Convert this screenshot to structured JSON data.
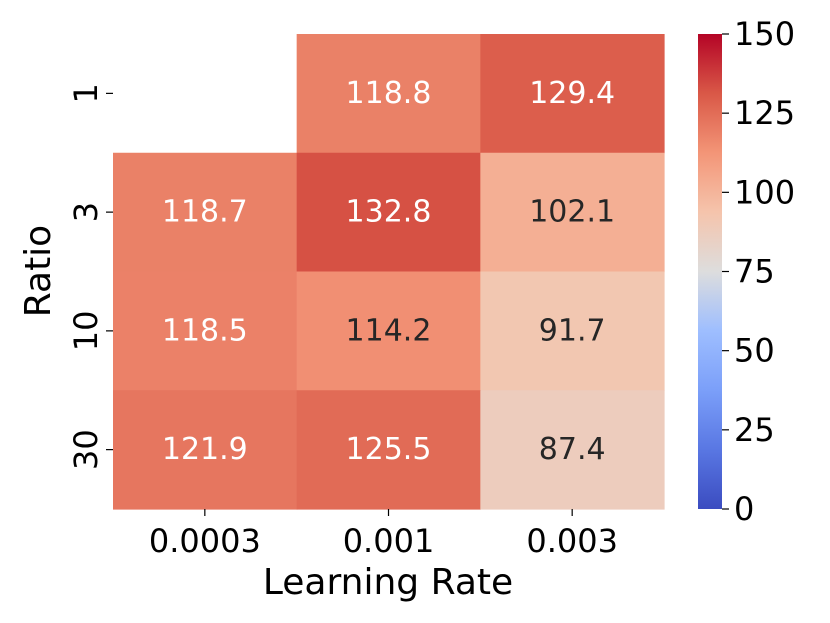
{
  "chart_data": {
    "type": "heatmap",
    "xlabel": "Learning Rate",
    "ylabel": "Ratio",
    "x_categories": [
      "0.0003",
      "0.001",
      "0.003"
    ],
    "y_categories": [
      "1",
      "3",
      "10",
      "30"
    ],
    "values": [
      [
        null,
        118.8,
        129.4
      ],
      [
        118.7,
        132.8,
        102.1
      ],
      [
        118.5,
        114.2,
        91.7
      ],
      [
        121.9,
        125.5,
        87.4
      ]
    ],
    "colorbar": {
      "min": 0,
      "max": 150,
      "ticks": [
        "0",
        "25",
        "50",
        "75",
        "100",
        "125",
        "150"
      ],
      "colormap": "coolwarm"
    },
    "annotation_format": "0.1f"
  }
}
